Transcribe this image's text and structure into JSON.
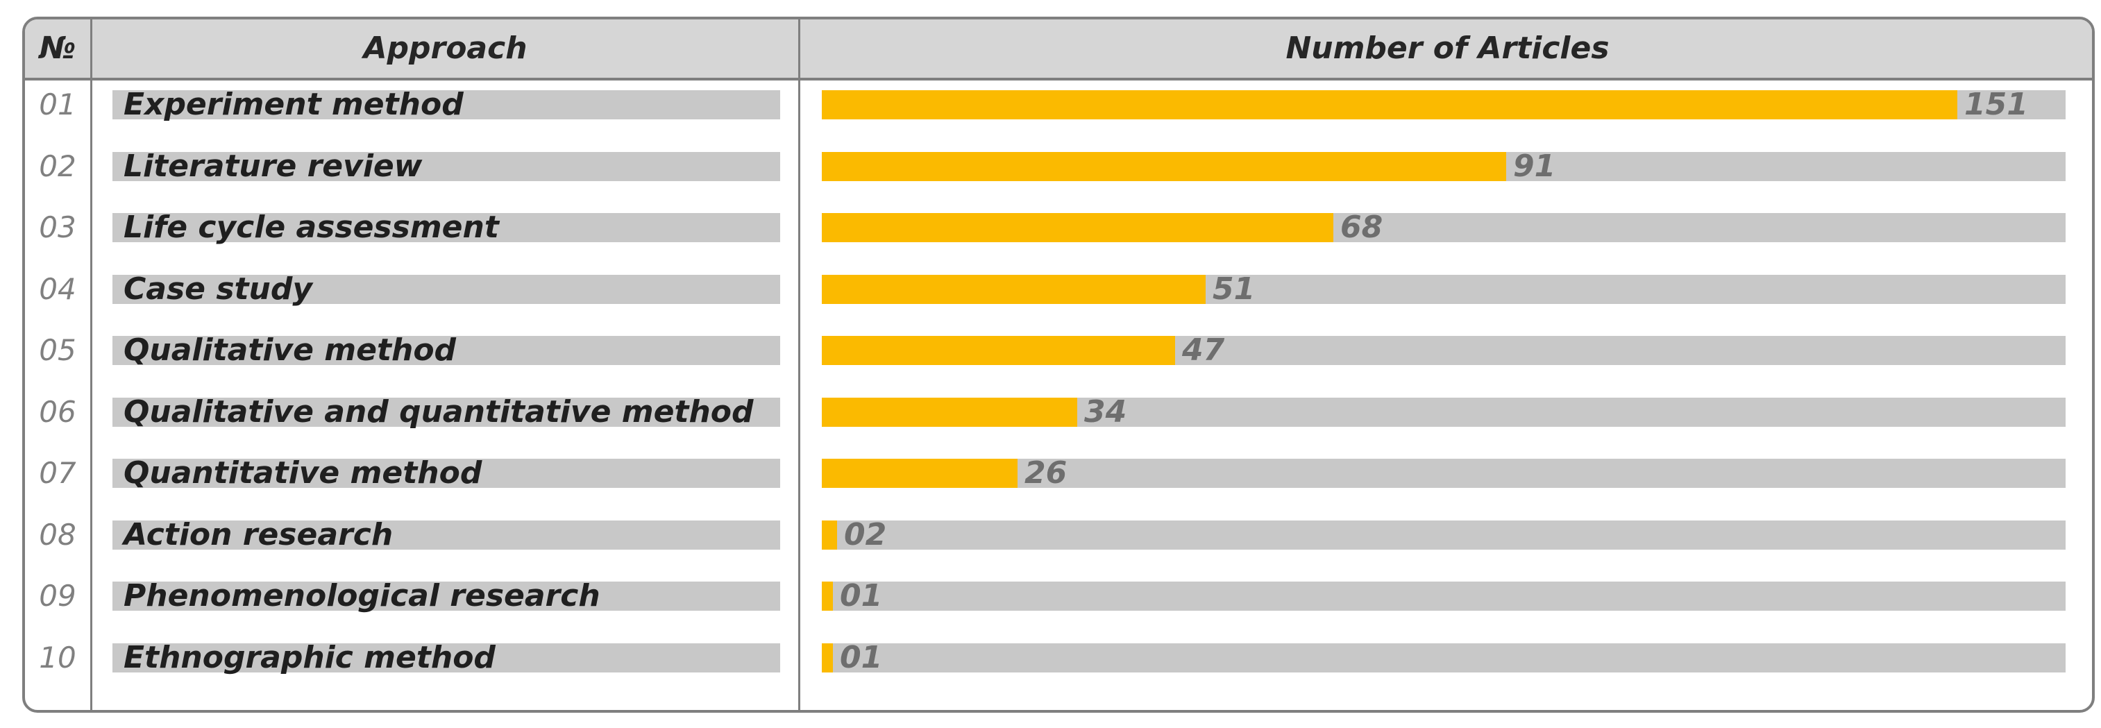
{
  "chart_data": {
    "type": "bar",
    "orientation": "horizontal",
    "headers": {
      "number": "№",
      "approach": "Approach",
      "articles": "Number of Articles"
    },
    "max_value": 151,
    "colors": {
      "bar_fill": "#fbba00",
      "track": "#c8c8c8",
      "header_bg": "#d6d6d6",
      "border": "#7f7f7f"
    },
    "rows": [
      {
        "num": "01",
        "label": "Experiment method",
        "value": 151,
        "value_label": "151"
      },
      {
        "num": "02",
        "label": "Literature review",
        "value": 91,
        "value_label": "91"
      },
      {
        "num": "03",
        "label": "Life cycle assessment",
        "value": 68,
        "value_label": "68"
      },
      {
        "num": "04",
        "label": "Case study",
        "value": 51,
        "value_label": "51"
      },
      {
        "num": "05",
        "label": "Qualitative method",
        "value": 47,
        "value_label": "47"
      },
      {
        "num": "06",
        "label": "Qualitative and quantitative method",
        "value": 34,
        "value_label": "34"
      },
      {
        "num": "07",
        "label": "Quantitative method",
        "value": 26,
        "value_label": "26"
      },
      {
        "num": "08",
        "label": "Action research",
        "value": 2,
        "value_label": "02"
      },
      {
        "num": "09",
        "label": "Phenomenological research",
        "value": 1,
        "value_label": "01"
      },
      {
        "num": "10",
        "label": "Ethnographic method",
        "value": 1,
        "value_label": "01"
      }
    ]
  }
}
